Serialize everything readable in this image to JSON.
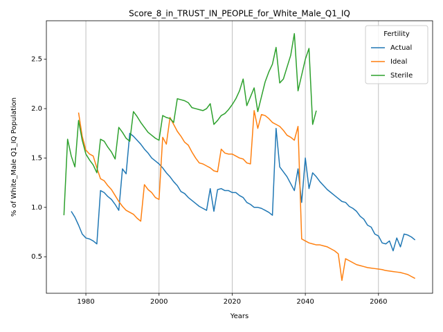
{
  "chart_data": {
    "type": "line",
    "title": "Score_8_in_TRUST_IN_PEOPLE_for_White_Male_Q1_IQ",
    "x_label": "Years",
    "y_label": "% of White_Male Q1_IQ Population",
    "legend_title": "Fertility",
    "legend_loc": "upper right",
    "grid": "x",
    "x": [
      1974,
      1975,
      1976,
      1977,
      1978,
      1979,
      1980,
      1981,
      1982,
      1983,
      1984,
      1985,
      1986,
      1987,
      1988,
      1989,
      1990,
      1991,
      1992,
      1993,
      1994,
      1995,
      1996,
      1997,
      1998,
      1999,
      2000,
      2001,
      2002,
      2003,
      2004,
      2005,
      2006,
      2007,
      2008,
      2009,
      2010,
      2011,
      2012,
      2013,
      2014,
      2015,
      2016,
      2017,
      2018,
      2019,
      2020,
      2021,
      2022,
      2023,
      2024,
      2025,
      2026,
      2027,
      2028,
      2029,
      2030,
      2031,
      2032,
      2033,
      2034,
      2035,
      2036,
      2037,
      2038,
      2039,
      2040,
      2041,
      2042,
      2043,
      2044,
      2045,
      2046,
      2047,
      2048,
      2049,
      2050,
      2051,
      2052,
      2053,
      2054,
      2055,
      2056,
      2057,
      2058,
      2059,
      2060,
      2061,
      2062,
      2063,
      2064,
      2065,
      2066,
      2067,
      2068,
      2069,
      2070
    ],
    "series": [
      {
        "name": "Actual",
        "color": "#1f77b4",
        "values": [
          null,
          null,
          0.96,
          0.9,
          0.82,
          0.73,
          0.69,
          0.68,
          0.66,
          0.63,
          1.17,
          1.15,
          1.11,
          1.08,
          1.03,
          0.97,
          1.39,
          1.34,
          1.75,
          1.72,
          1.68,
          1.64,
          1.59,
          1.55,
          1.5,
          1.47,
          1.44,
          1.4,
          1.35,
          1.31,
          1.26,
          1.22,
          1.16,
          1.14,
          1.1,
          1.07,
          1.04,
          1.01,
          0.99,
          0.97,
          1.19,
          0.96,
          1.18,
          1.19,
          1.17,
          1.17,
          1.15,
          1.15,
          1.12,
          1.1,
          1.05,
          1.03,
          1.0,
          1.0,
          0.99,
          0.97,
          0.95,
          0.92,
          1.8,
          1.41,
          1.36,
          1.31,
          1.24,
          1.17,
          1.39,
          1.05,
          1.5,
          1.19,
          1.35,
          1.31,
          1.26,
          1.22,
          1.18,
          1.15,
          1.12,
          1.09,
          1.06,
          1.05,
          1.01,
          0.99,
          0.96,
          0.91,
          0.88,
          0.82,
          0.8,
          0.73,
          0.71,
          0.64,
          0.63,
          0.66,
          0.56,
          0.69,
          0.6,
          0.73,
          0.72,
          0.7,
          0.67
        ]
      },
      {
        "name": "Ideal",
        "color": "#ff7f0e",
        "values": [
          null,
          null,
          null,
          null,
          1.96,
          1.72,
          1.58,
          1.54,
          1.52,
          1.4,
          1.29,
          1.27,
          1.22,
          1.18,
          1.12,
          1.06,
          1.01,
          0.97,
          0.95,
          0.93,
          0.89,
          0.86,
          1.23,
          1.18,
          1.15,
          1.1,
          1.08,
          1.71,
          1.64,
          1.91,
          1.84,
          1.77,
          1.72,
          1.66,
          1.63,
          1.56,
          1.5,
          1.45,
          1.44,
          1.42,
          1.4,
          1.37,
          1.36,
          1.59,
          1.55,
          1.54,
          1.54,
          1.52,
          1.5,
          1.49,
          1.45,
          1.44,
          1.98,
          1.8,
          1.94,
          1.93,
          1.9,
          1.86,
          1.84,
          1.82,
          1.78,
          1.73,
          1.71,
          1.68,
          1.82,
          0.68,
          0.66,
          0.64,
          0.63,
          0.62,
          0.62,
          0.61,
          0.6,
          0.58,
          0.56,
          0.53,
          0.26,
          0.48,
          0.46,
          0.44,
          0.42,
          0.41,
          0.4,
          0.39,
          0.385,
          0.38,
          0.375,
          0.37,
          0.36,
          0.355,
          0.35,
          0.345,
          0.34,
          0.33,
          0.32,
          0.3,
          0.28
        ]
      },
      {
        "name": "Sterile",
        "color": "#2ca02c",
        "values": [
          0.92,
          1.69,
          1.52,
          1.41,
          1.88,
          1.68,
          1.54,
          1.48,
          1.43,
          1.35,
          1.69,
          1.67,
          1.61,
          1.56,
          1.49,
          1.81,
          1.76,
          1.7,
          1.67,
          1.97,
          1.92,
          1.86,
          1.81,
          1.76,
          1.73,
          1.7,
          1.68,
          1.93,
          1.91,
          1.9,
          1.86,
          2.1,
          2.09,
          2.08,
          2.06,
          2.01,
          2.0,
          1.99,
          1.98,
          2.0,
          2.05,
          1.84,
          1.88,
          1.93,
          1.95,
          1.99,
          2.04,
          2.1,
          2.18,
          2.3,
          2.03,
          2.12,
          2.21,
          1.97,
          2.12,
          2.27,
          2.37,
          2.45,
          2.62,
          2.26,
          2.3,
          2.42,
          2.54,
          2.76,
          2.18,
          2.34,
          2.5,
          2.61,
          1.84,
          1.98,
          null,
          null,
          null,
          null,
          null,
          null,
          null,
          null,
          null,
          null,
          null,
          null,
          null,
          null,
          null,
          null,
          null,
          null,
          null,
          null,
          null,
          null,
          null,
          null,
          null,
          null,
          null
        ]
      }
    ],
    "xlim": [
      1969.2,
      2074.8
    ],
    "xticks": [
      1980,
      2000,
      2020,
      2040,
      2060
    ],
    "ylim": [
      0.13,
      2.89
    ],
    "yticks": [
      0.5,
      {
        "value": 1,
        "label": "1.0"
      },
      1.5,
      {
        "value": 2,
        "label": "2.0"
      },
      2.5
    ]
  }
}
